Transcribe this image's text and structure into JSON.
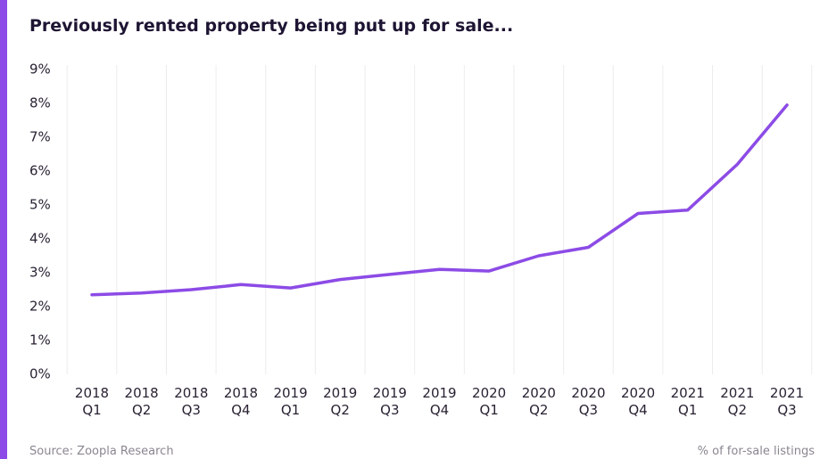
{
  "chart_data": {
    "type": "line",
    "title": "Previously rented property being put up for sale...",
    "categories": [
      "2018\nQ1",
      "2018\nQ2",
      "2018\nQ3",
      "2018\nQ4",
      "2019\nQ1",
      "2019\nQ2",
      "2019\nQ3",
      "2019\nQ4",
      "2020\nQ1",
      "2020\nQ2",
      "2020\nQ3",
      "2020\nQ4",
      "2021\nQ1",
      "2021\nQ2",
      "2021\nQ3"
    ],
    "values": [
      2.35,
      2.4,
      2.5,
      2.65,
      2.55,
      2.8,
      2.95,
      3.1,
      3.05,
      3.5,
      3.75,
      4.75,
      4.85,
      6.2,
      7.95
    ],
    "color": "#8c4be6",
    "ylim": [
      0,
      9
    ],
    "yticks": [
      {
        "value": 0,
        "label": "0%"
      },
      {
        "value": 1,
        "label": "1%"
      },
      {
        "value": 2,
        "label": "2%"
      },
      {
        "value": 3,
        "label": "3%"
      },
      {
        "value": 4,
        "label": "4%"
      },
      {
        "value": 5,
        "label": "5%"
      },
      {
        "value": 6,
        "label": "6%"
      },
      {
        "value": 7,
        "label": "7%"
      },
      {
        "value": 8,
        "label": "8%"
      },
      {
        "value": 9,
        "label": "9%"
      }
    ],
    "source": "Source: Zoopla Research",
    "note": "% of for-sale listings"
  }
}
